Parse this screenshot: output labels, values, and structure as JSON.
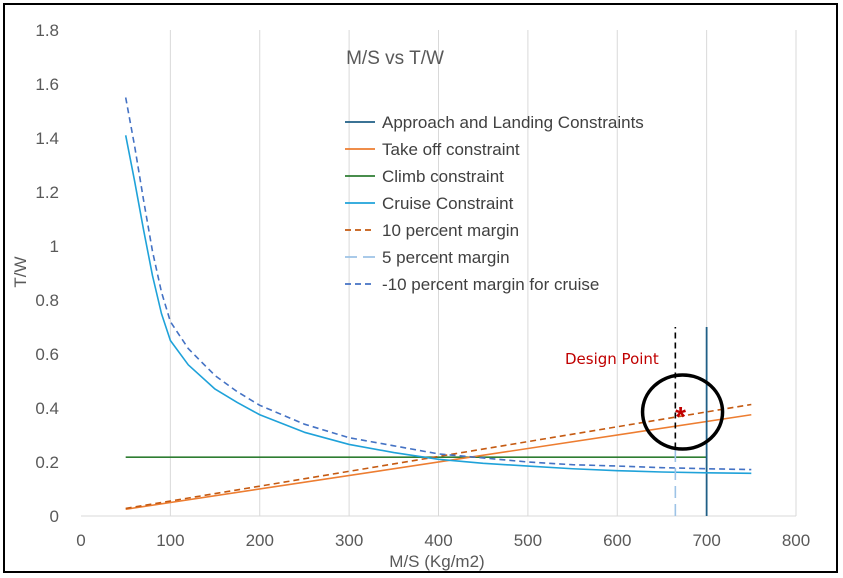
{
  "chart_data": {
    "type": "line",
    "title": "M/S vs T/W",
    "xlabel": "M/S (Kg/m2)",
    "ylabel": "T/W",
    "xlim": [
      0,
      800
    ],
    "ylim": [
      0,
      1.8
    ],
    "xticks": [
      "0",
      "100",
      "200",
      "300",
      "400",
      "500",
      "600",
      "700",
      "800"
    ],
    "yticks": [
      "0",
      "0.2",
      "0.4",
      "0.6",
      "0.8",
      "1",
      "1.2",
      "1.4",
      "1.6",
      "1.8"
    ],
    "grid": "vertical",
    "legend_position": "top-right",
    "series": [
      {
        "name": "Approach and Landing Constraints",
        "color": "#1f5f86",
        "dash": "solid",
        "x": [
          700,
          700
        ],
        "y": [
          0,
          0.7
        ]
      },
      {
        "name": "Take off constraint",
        "color": "#ed7d31",
        "dash": "solid",
        "x": [
          50,
          750
        ],
        "y": [
          0.025,
          0.375
        ]
      },
      {
        "name": "Climb constraint",
        "color": "#2e7d32",
        "dash": "solid",
        "x": [
          50,
          700
        ],
        "y": [
          0.218,
          0.218
        ]
      },
      {
        "name": "Cruise Constraint",
        "color": "#1fa2d9",
        "dash": "solid",
        "x": [
          50,
          60,
          70,
          80,
          90,
          100,
          120,
          150,
          175,
          200,
          250,
          300,
          350,
          400,
          450,
          500,
          550,
          600,
          650,
          700,
          750
        ],
        "y": [
          1.41,
          1.24,
          1.06,
          0.89,
          0.75,
          0.65,
          0.56,
          0.47,
          0.42,
          0.375,
          0.31,
          0.265,
          0.235,
          0.21,
          0.195,
          0.185,
          0.175,
          0.168,
          0.163,
          0.16,
          0.158
        ]
      },
      {
        "name": "10 percent margin",
        "color": "#c55a11",
        "dash": "dashed",
        "x": [
          50,
          750
        ],
        "y": [
          0.028,
          0.413
        ]
      },
      {
        "name": "5 percent margin",
        "color": "#9dc3e6",
        "dash": "longdash",
        "x": [
          665,
          665
        ],
        "y": [
          0,
          0.25
        ]
      },
      {
        "name": "-10 percent margin for cruise",
        "color": "#4472c4",
        "dash": "dashed",
        "x": [
          50,
          60,
          70,
          80,
          90,
          100,
          120,
          150,
          175,
          200,
          250,
          300,
          350,
          400,
          450,
          500,
          550,
          600,
          650,
          700,
          750
        ],
        "y": [
          1.55,
          1.37,
          1.17,
          0.98,
          0.83,
          0.72,
          0.62,
          0.52,
          0.46,
          0.41,
          0.34,
          0.29,
          0.26,
          0.23,
          0.215,
          0.2,
          0.19,
          0.185,
          0.179,
          0.175,
          0.172
        ]
      }
    ],
    "extra_lines": [
      {
        "color": "#000000",
        "dash": "dashed",
        "x": [
          665,
          665
        ],
        "y": [
          0.25,
          0.7
        ]
      }
    ],
    "design_point": {
      "label": "Design Point",
      "marker": "*",
      "x": 663,
      "y": 0.385,
      "color": "#c00000"
    }
  }
}
